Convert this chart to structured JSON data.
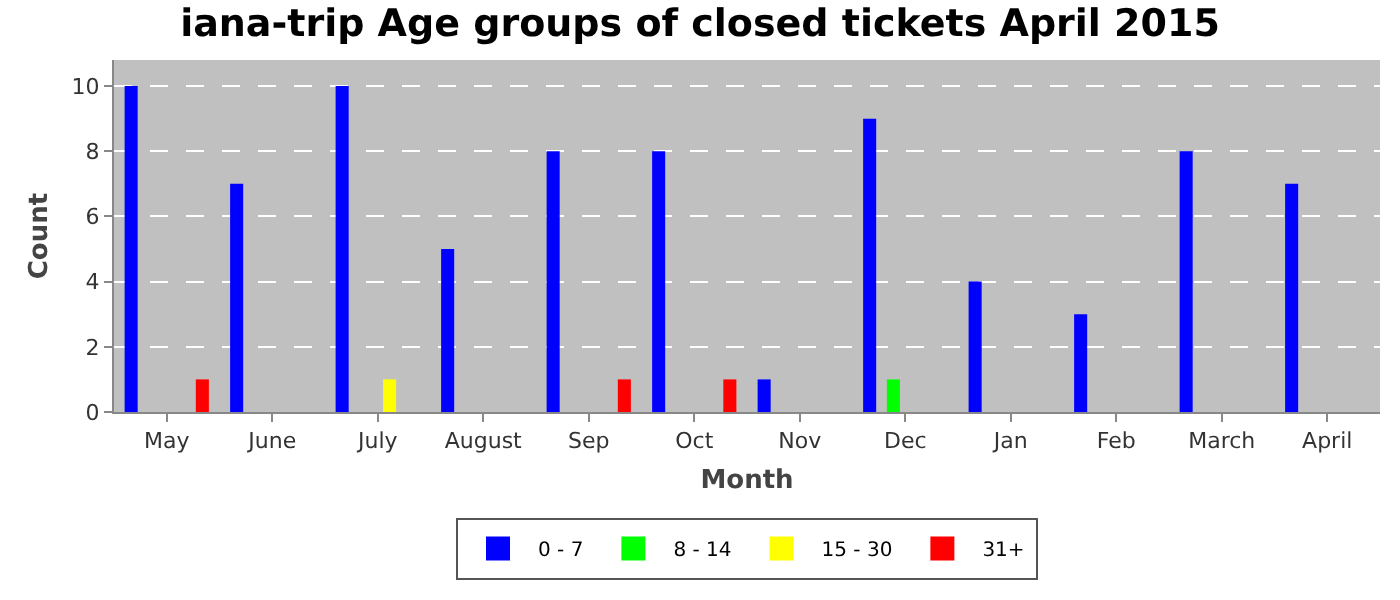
{
  "chart_data": {
    "type": "bar",
    "title": "iana-trip Age groups of closed tickets April 2015",
    "xlabel": "Month",
    "ylabel": "Count",
    "categories": [
      "May",
      "June",
      "July",
      "August",
      "Sep",
      "Oct",
      "Nov",
      "Dec",
      "Jan",
      "Feb",
      "March",
      "April"
    ],
    "series": [
      {
        "name": "0 - 7",
        "color": "#0000ff",
        "values": [
          10,
          7,
          10,
          5,
          8,
          8,
          1,
          9,
          4,
          3,
          8,
          7
        ]
      },
      {
        "name": "8 - 14",
        "color": "#00ff00",
        "values": [
          0,
          0,
          0,
          0,
          0,
          0,
          0,
          1,
          0,
          0,
          0,
          0
        ]
      },
      {
        "name": "15 - 30",
        "color": "#ffff00",
        "values": [
          0,
          0,
          1,
          0,
          0,
          0,
          0,
          0,
          0,
          0,
          0,
          0
        ]
      },
      {
        "name": "31+",
        "color": "#ff0000",
        "values": [
          1,
          0,
          0,
          0,
          1,
          1,
          0,
          0,
          0,
          0,
          0,
          0
        ]
      }
    ],
    "ylim": [
      0,
      10.8
    ],
    "yticks": [
      0,
      2,
      4,
      6,
      8,
      10
    ],
    "grid": "y",
    "legend": "bottom"
  }
}
